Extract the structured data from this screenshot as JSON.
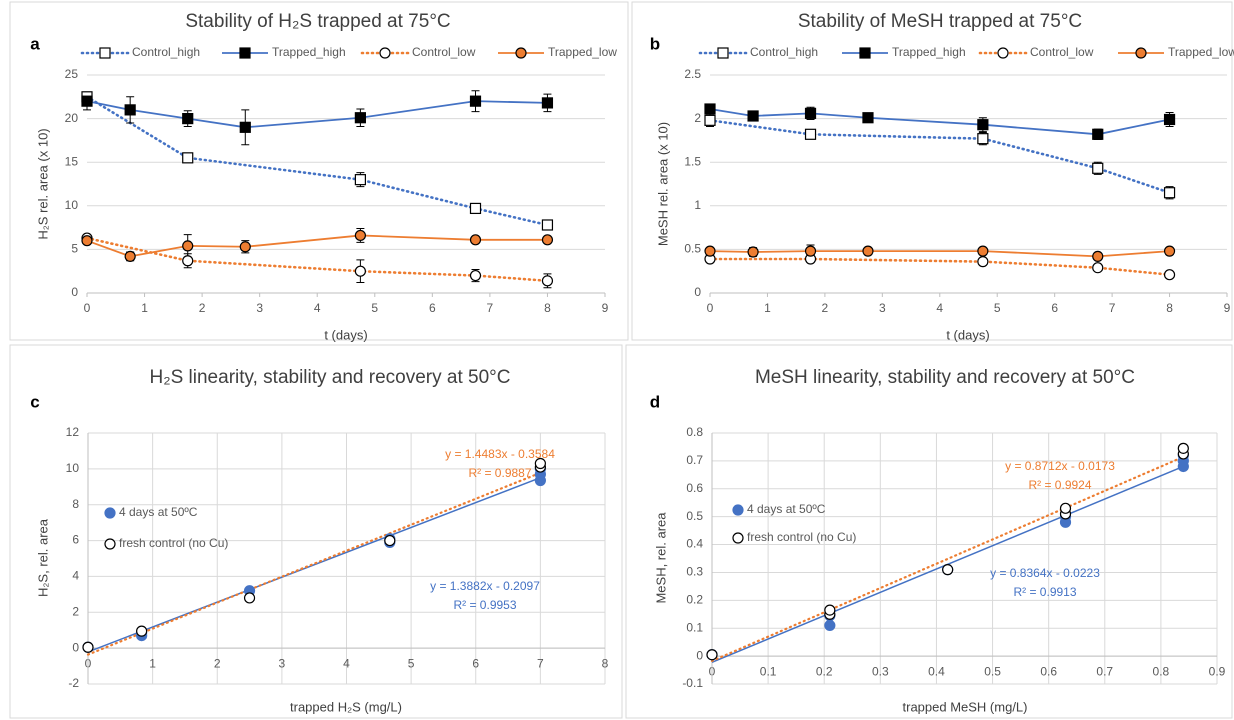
{
  "chart_data": [
    {
      "type": "line",
      "panel_label": "a",
      "title": "Stability of H₂S trapped at 75°C",
      "x_label": "t (days)",
      "y_label": "H₂S rel. area (x 10)",
      "xlim": [
        0,
        9
      ],
      "xticks": [
        0,
        1,
        2,
        3,
        4,
        5,
        6,
        7,
        8,
        9
      ],
      "ylim": [
        0,
        25
      ],
      "yticks": [
        0,
        5,
        10,
        15,
        20,
        25
      ],
      "grid": "y",
      "legend": "top",
      "series": [
        {
          "name": "Control_high",
          "color": "#4472c4",
          "line_style": "dotted",
          "marker": "square",
          "marker_fill": "#ffffff",
          "x": [
            0,
            1.75,
            4.75,
            6.75,
            8
          ],
          "values": [
            22.5,
            15.5,
            13,
            9.7,
            7.8
          ],
          "errors": [
            0.5,
            0.3,
            0.8,
            0.5,
            0.4
          ]
        },
        {
          "name": "Trapped_high",
          "color": "#4472c4",
          "line_style": "solid",
          "marker": "square",
          "marker_fill": "#000000",
          "x": [
            0,
            0.75,
            1.75,
            2.75,
            4.75,
            6.75,
            8
          ],
          "values": [
            22,
            21,
            20,
            19,
            20.1,
            22,
            21.8
          ],
          "errors": [
            1,
            1.5,
            0.9,
            2,
            1,
            1.2,
            1
          ]
        },
        {
          "name": "Control_low",
          "color": "#ed7d31",
          "line_style": "dotted",
          "marker": "circle",
          "marker_fill": "#ffffff",
          "x": [
            0,
            1.75,
            4.75,
            6.75,
            8
          ],
          "values": [
            6.3,
            3.7,
            2.5,
            2,
            1.4
          ],
          "errors": [
            0.3,
            0.8,
            1.3,
            0.7,
            0.8
          ]
        },
        {
          "name": "Trapped_low",
          "color": "#ed7d31",
          "line_style": "solid",
          "marker": "circle",
          "marker_fill": "#ed7d31",
          "x": [
            0,
            0.75,
            1.75,
            2.75,
            4.75,
            6.75,
            8
          ],
          "values": [
            6,
            4.2,
            5.4,
            5.3,
            6.6,
            6.1,
            6.1
          ],
          "errors": [
            0.3,
            0.5,
            1.3,
            0.7,
            0.8,
            0.3,
            0.3
          ]
        }
      ]
    },
    {
      "type": "line",
      "panel_label": "b",
      "title": "Stability of MeSH trapped at 75°C",
      "x_label": "t (days)",
      "y_label": "MeSH rel. area (x 10)",
      "xlim": [
        0,
        9
      ],
      "xticks": [
        0,
        1,
        2,
        3,
        4,
        5,
        6,
        7,
        8,
        9
      ],
      "ylim": [
        0,
        2.5
      ],
      "yticks": [
        0,
        0.5,
        1,
        1.5,
        2,
        2.5
      ],
      "grid": "y",
      "legend": "top",
      "series": [
        {
          "name": "Control_high",
          "color": "#4472c4",
          "line_style": "dotted",
          "marker": "square",
          "marker_fill": "#ffffff",
          "x": [
            0,
            1.75,
            4.75,
            6.75,
            8
          ],
          "values": [
            1.98,
            1.82,
            1.77,
            1.43,
            1.15
          ],
          "errors": [
            0.07,
            0.03,
            0.07,
            0.07,
            0.07
          ]
        },
        {
          "name": "Trapped_high",
          "color": "#4472c4",
          "line_style": "solid",
          "marker": "square",
          "marker_fill": "#000000",
          "x": [
            0,
            0.75,
            1.75,
            2.75,
            4.75,
            6.75,
            8
          ],
          "values": [
            2.11,
            2.03,
            2.06,
            2.01,
            1.93,
            1.82,
            1.99
          ],
          "errors": [
            0.04,
            0.03,
            0.07,
            0.03,
            0.08,
            0.06,
            0.08
          ]
        },
        {
          "name": "Control_low",
          "color": "#ed7d31",
          "line_style": "dotted",
          "marker": "circle",
          "marker_fill": "#ffffff",
          "x": [
            0,
            1.75,
            4.75,
            6.75,
            8
          ],
          "values": [
            0.39,
            0.39,
            0.36,
            0.29,
            0.21
          ],
          "errors": [
            0.02,
            0.02,
            0.02,
            0.02,
            0.02
          ]
        },
        {
          "name": "Trapped_low",
          "color": "#ed7d31",
          "line_style": "solid",
          "marker": "circle",
          "marker_fill": "#ed7d31",
          "x": [
            0,
            0.75,
            1.75,
            2.75,
            4.75,
            6.75,
            8
          ],
          "values": [
            0.48,
            0.47,
            0.48,
            0.48,
            0.48,
            0.42,
            0.48
          ],
          "errors": [
            0.03,
            0.05,
            0.07,
            0.03,
            0.03,
            0.03,
            0.03
          ]
        }
      ]
    },
    {
      "type": "scatter",
      "panel_label": "c",
      "title": "H₂S linearity, stability and recovery at 50°C",
      "x_label": "trapped H₂S (mg/L)",
      "y_label": "H₂S, rel. area",
      "xlim": [
        0,
        8
      ],
      "xticks": [
        0,
        1,
        2,
        3,
        4,
        5,
        6,
        7,
        8
      ],
      "ylim": [
        -2,
        12
      ],
      "yticks": [
        -2,
        0,
        2,
        4,
        6,
        8,
        10,
        12
      ],
      "grid": "both",
      "legend": "left",
      "series": [
        {
          "name": "4 days at 50ºC",
          "color": "#4472c4",
          "marker": "circle",
          "marker_fill": "#4472c4",
          "x": [
            0,
            0.83,
            0.83,
            2.5,
            4.67,
            4.67,
            7,
            7,
            7
          ],
          "values": [
            0.05,
            0.7,
            0.85,
            3.2,
            5.9,
            6.1,
            9.35,
            9.7,
            10
          ],
          "trendline": {
            "color": "#4472c4",
            "line_style": "solid",
            "slope": 1.3882,
            "intercept": -0.2097,
            "equation": "y = 1.3882x - 0.2097",
            "r_squared": "R² = 0.9953"
          }
        },
        {
          "name": "fresh control (no Cu)",
          "color": "#000000",
          "marker": "circle",
          "marker_fill": "#ffffff",
          "x": [
            0,
            0.83,
            2.5,
            4.67,
            7,
            7
          ],
          "values": [
            0.05,
            0.95,
            2.8,
            6,
            10.1,
            10.3
          ],
          "trendline": {
            "color": "#ed7d31",
            "line_style": "dotted",
            "slope": 1.4483,
            "intercept": -0.3584,
            "equation": "y = 1.4483x - 0.3584",
            "r_squared": "R² = 0.9887"
          }
        }
      ]
    },
    {
      "type": "scatter",
      "panel_label": "d",
      "title": "MeSH linearity, stability and recovery at 50°C",
      "x_label": "trapped MeSH (mg/L)",
      "y_label": "MeSH, rel. area",
      "xlim": [
        0,
        0.9
      ],
      "xticks": [
        0,
        0.1,
        0.2,
        0.3,
        0.4,
        0.5,
        0.6,
        0.7,
        0.8,
        0.9
      ],
      "ylim": [
        -0.1,
        0.8
      ],
      "yticks": [
        -0.1,
        0,
        0.1,
        0.2,
        0.3,
        0.4,
        0.5,
        0.6,
        0.7,
        0.8
      ],
      "grid": "both",
      "legend": "left",
      "series": [
        {
          "name": "4 days at 50ºC",
          "color": "#4472c4",
          "marker": "circle",
          "marker_fill": "#4472c4",
          "x": [
            0,
            0.21,
            0.21,
            0.42,
            0.63,
            0.63,
            0.84,
            0.84,
            0.84
          ],
          "values": [
            0.005,
            0.11,
            0.145,
            0.31,
            0.48,
            0.5,
            0.68,
            0.7,
            0.72
          ],
          "trendline": {
            "color": "#4472c4",
            "line_style": "solid",
            "slope": 0.8364,
            "intercept": -0.0223,
            "equation": "y = 0.8364x - 0.0223",
            "r_squared": "R² = 0.9913"
          }
        },
        {
          "name": "fresh control (no Cu)",
          "color": "#000000",
          "marker": "circle",
          "marker_fill": "#ffffff",
          "x": [
            0,
            0.21,
            0.21,
            0.42,
            0.63,
            0.63,
            0.84,
            0.84
          ],
          "values": [
            0.005,
            0.15,
            0.165,
            0.31,
            0.51,
            0.53,
            0.725,
            0.745
          ],
          "trendline": {
            "color": "#ed7d31",
            "line_style": "dotted",
            "slope": 0.8712,
            "intercept": -0.0173,
            "equation": "y = 0.8712x - 0.0173",
            "r_squared": "R² = 0.9924"
          }
        }
      ]
    }
  ]
}
